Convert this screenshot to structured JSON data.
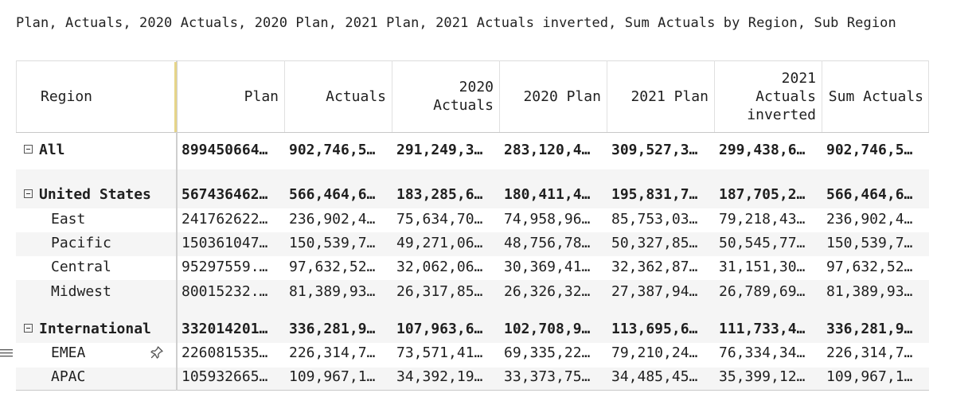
{
  "title": "Plan, Actuals, 2020 Actuals, 2020 Plan, 2021 Plan, 2021 Actuals inverted, Sum Actuals by Region, Sub Region",
  "columns": {
    "region": "Region",
    "plan": "Plan",
    "actuals": "Actuals",
    "a2020_l1": "2020",
    "a2020_l2": "Actuals",
    "p2020": "2020 Plan",
    "p2021": "2021 Plan",
    "ai2021_l1": "2021",
    "ai2021_l2": "Actuals",
    "ai2021_l3": "inverted",
    "sum": "Sum Actuals"
  },
  "rows": [
    {
      "label": "All",
      "values": [
        "899450664…",
        "902,746,5…",
        "291,249,3…",
        "283,120,4…",
        "309,527,3…",
        "299,438,6…",
        "902,746,5…"
      ]
    },
    {
      "label": "United States",
      "values": [
        "567436462…",
        "566,464,6…",
        "183,285,6…",
        "180,411,4…",
        "195,831,7…",
        "187,705,2…",
        "566,464,6…"
      ]
    },
    {
      "label": "East",
      "values": [
        "241762622…",
        "236,902,4…",
        "75,634,70…",
        "74,958,96…",
        "85,753,03…",
        "79,218,43…",
        "236,902,4…"
      ]
    },
    {
      "label": "Pacific",
      "values": [
        "150361047…",
        "150,539,7…",
        "49,271,06…",
        "48,756,78…",
        "50,327,85…",
        "50,545,77…",
        "150,539,7…"
      ]
    },
    {
      "label": "Central",
      "values": [
        "95297559.…",
        "97,632,52…",
        "32,062,06…",
        "30,369,41…",
        "32,362,87…",
        "31,151,30…",
        "97,632,52…"
      ]
    },
    {
      "label": "Midwest",
      "values": [
        "80015232.…",
        "81,389,93…",
        "26,317,85…",
        "26,326,32…",
        "27,387,94…",
        "26,789,69…",
        "81,389,93…"
      ]
    },
    {
      "label": "International",
      "values": [
        "332014201…",
        "336,281,9…",
        "107,963,6…",
        "102,708,9…",
        "113,695,6…",
        "111,733,4…",
        "336,281,9…"
      ]
    },
    {
      "label": "EMEA",
      "values": [
        "226081535…",
        "226,314,7…",
        "73,571,41…",
        "69,335,22…",
        "79,210,24…",
        "76,334,34…",
        "226,314,7…"
      ]
    },
    {
      "label": "APAC",
      "values": [
        "105932665…",
        "109,967,1…",
        "34,392,19…",
        "33,373,75…",
        "34,485,45…",
        "35,399,12…",
        "109,967,1…"
      ]
    }
  ],
  "icons": {
    "collapse": "minus-box-icon",
    "pin": "pin-icon",
    "drag": "drag-handle-icon"
  }
}
